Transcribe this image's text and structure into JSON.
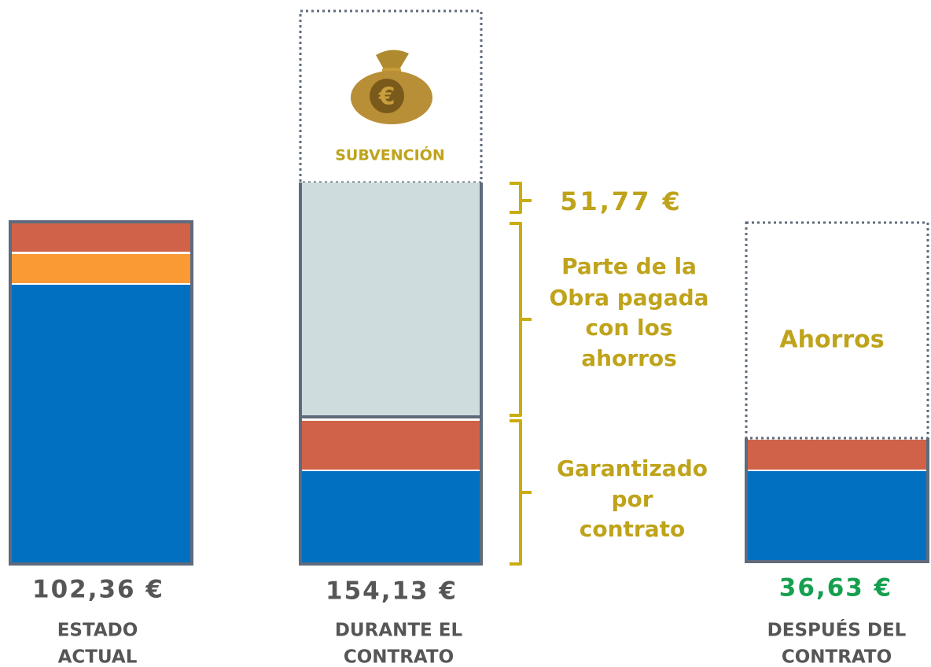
{
  "columns": [
    {
      "value": "102,36 €",
      "label": [
        "ESTADO",
        "ACTUAL"
      ]
    },
    {
      "value": "154,13 €",
      "label": [
        "DURANTE EL",
        "CONTRATO"
      ],
      "top_label": "SUBVENCIÓN"
    },
    {
      "value": "36,63 €",
      "label": [
        "DESPUÉS DEL",
        "CONTRATO"
      ],
      "box_label": "Ahorros"
    }
  ],
  "annotations": {
    "amount": "51,77 €",
    "savings_part": [
      "Parte de la",
      "Obra pagada",
      "con los",
      "ahorros"
    ],
    "guaranteed": [
      "Garantizado",
      "por",
      "contrato"
    ]
  }
}
